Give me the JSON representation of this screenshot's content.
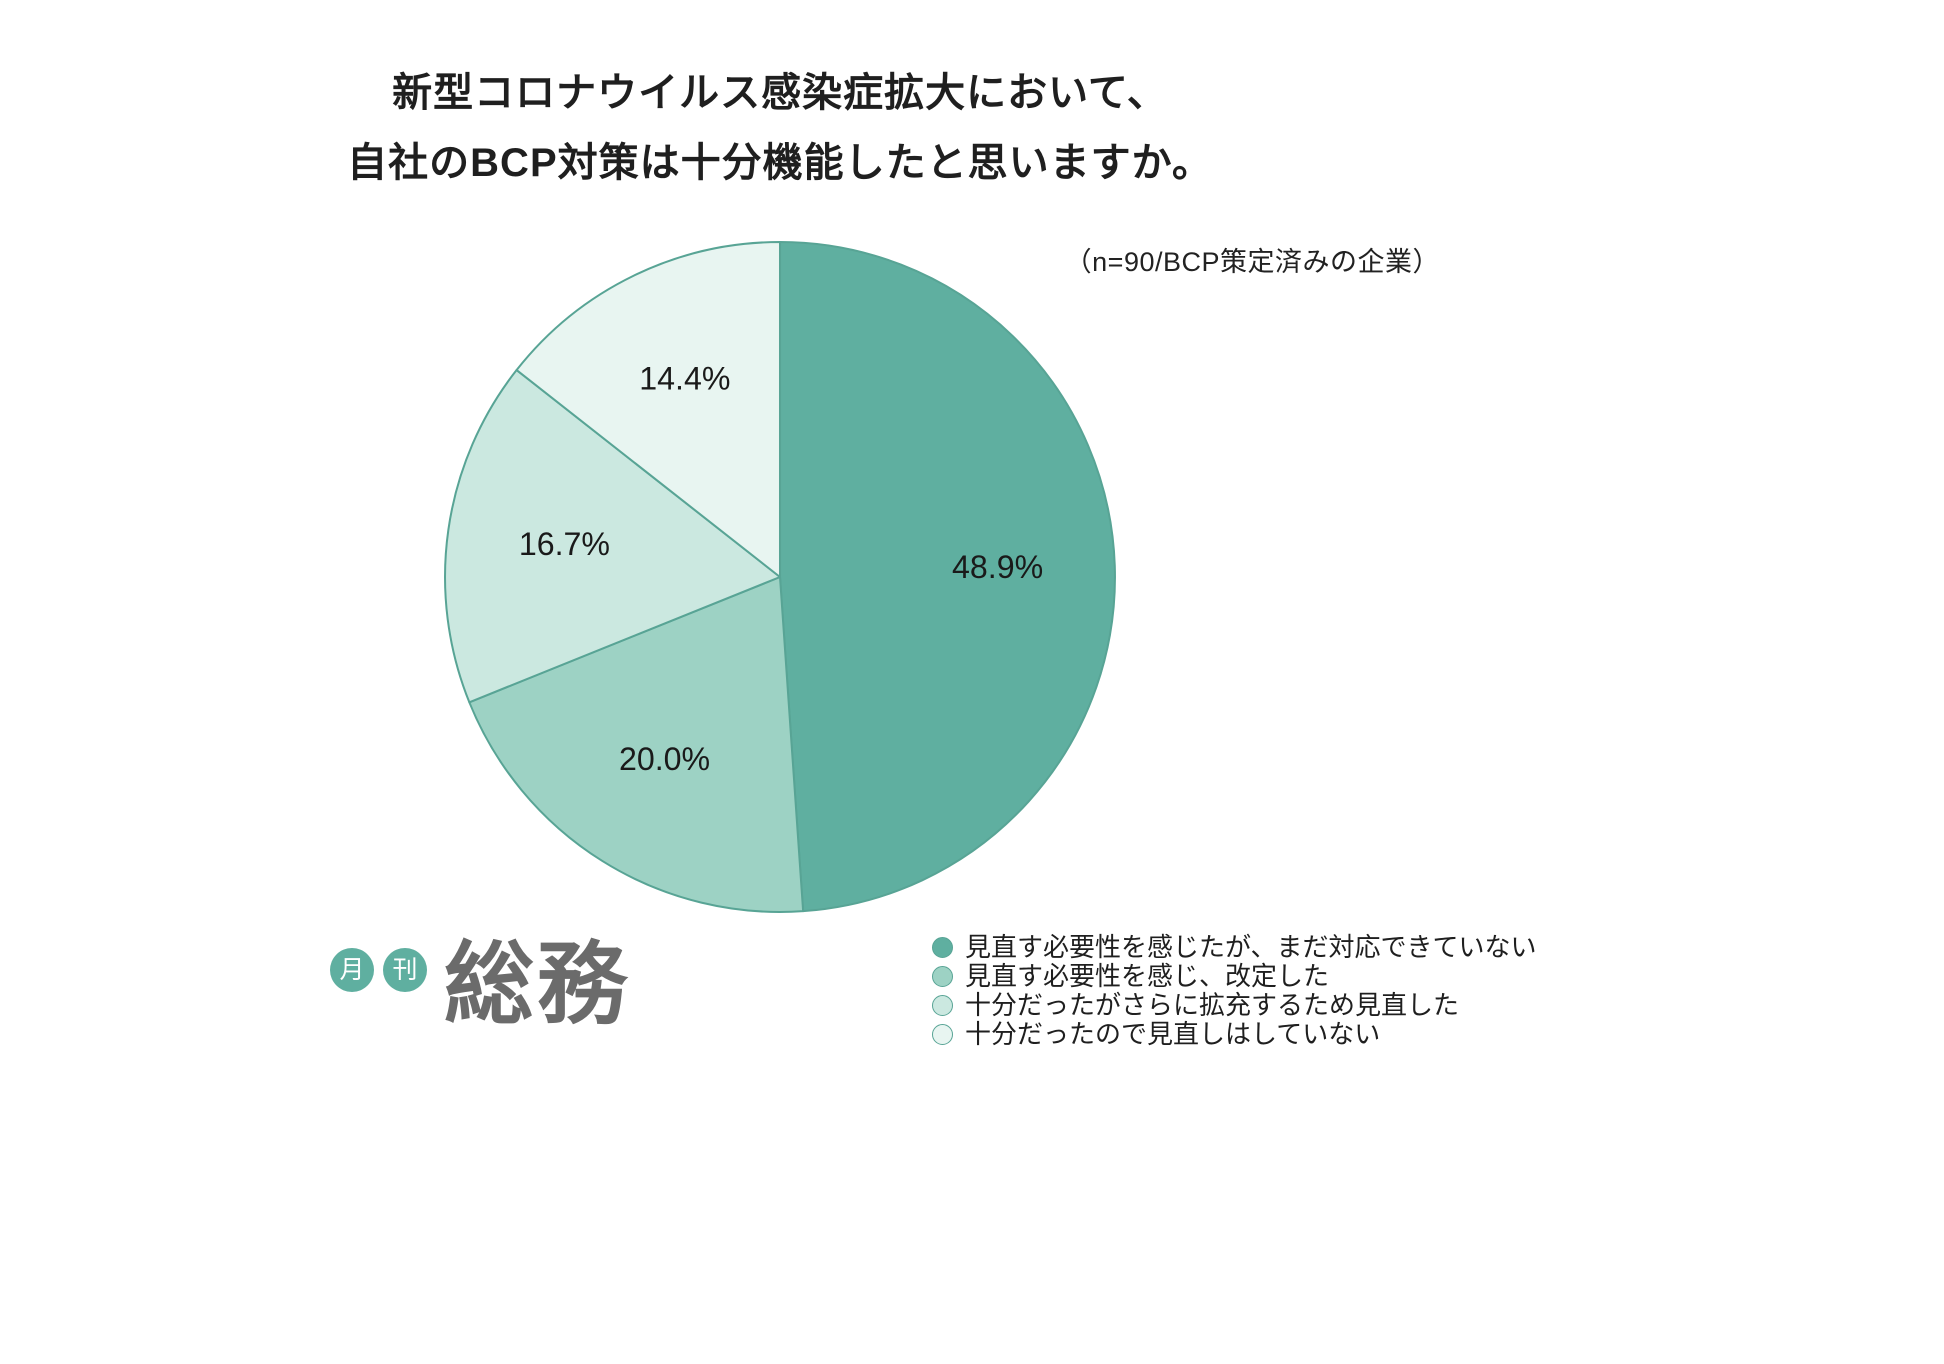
{
  "title": {
    "line1": "新型コロナウイルス感染症拡大において、",
    "line2": "自社のBCP対策は十分機能したと思いますか。"
  },
  "annotation": "（n=90/BCP策定済みの企業）",
  "chart_data": {
    "type": "pie",
    "title": "新型コロナウイルス感染症拡大において、自社のBCP対策は十分機能したと思いますか。",
    "sample_note": "（n=90/BCP策定済みの企業）",
    "start_angle_deg": 0,
    "direction": "clockwise",
    "slices": [
      {
        "label": "見直す必要性を感じたが、まだ対応できていない",
        "value": 48.9,
        "percent_label": "48.9%",
        "color": "#5FAFA0"
      },
      {
        "label": "見直す必要性を感じ、改定した",
        "value": 20.0,
        "percent_label": "20.0%",
        "color": "#9DD2C4"
      },
      {
        "label": "十分だったがさらに拡充するため見直した",
        "value": 16.7,
        "percent_label": "16.7%",
        "color": "#CBE8E0"
      },
      {
        "label": "十分だったので見直しはしていない",
        "value": 14.4,
        "percent_label": "14.4%",
        "color": "#E8F5F1"
      }
    ],
    "stroke_color": "#58A495",
    "label_color": "#1a1a1a",
    "label_radius_fraction": 0.65,
    "legend_position": "bottom-right"
  },
  "logo": {
    "badge1": "月",
    "badge2": "刊",
    "name": "総務",
    "badge_color": "#5FAFA0",
    "name_color": "#6B6B6B"
  }
}
